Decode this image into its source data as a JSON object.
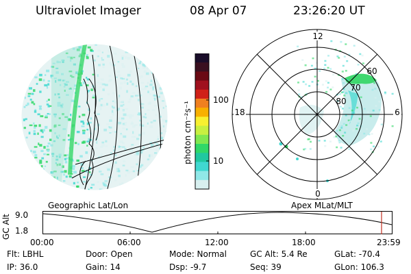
{
  "header": {
    "instrument": "Ultraviolet Imager",
    "date": "08 Apr 07",
    "time": "23:26:20 UT"
  },
  "colorbar": {
    "label": "photon cm⁻²s⁻¹",
    "ticks": [
      "100",
      "10"
    ],
    "colors": [
      "#1a0d2a",
      "#3a1020",
      "#6a0a14",
      "#a0101e",
      "#d02018",
      "#f08020",
      "#f8b000",
      "#f8f030",
      "#c8f040",
      "#80e850",
      "#30d868",
      "#20c8a0",
      "#40d8d0",
      "#90e8e8",
      "#d8f0f0"
    ]
  },
  "polar": {
    "labels": [
      "12",
      "18",
      "6",
      "0",
      "60",
      "70",
      "80"
    ]
  },
  "footer": {
    "left_title": "Geographic Lat/Lon",
    "right_title": "Apex MLat/MLT",
    "axis_label": "GC Alt",
    "y_ticks": [
      "9.0",
      "1.8"
    ],
    "x_ticks": [
      "00:00",
      "06:00",
      "12:00",
      "18:00",
      "23:59"
    ]
  },
  "info": {
    "row1": [
      "Flt: LBHL",
      "Door: Open",
      "Mode: Normal",
      "GC Alt: 5.4 Re",
      "GLat: -70.4"
    ],
    "row2": [
      "IP: 36.0",
      "Gain: 14",
      "Dsp: -9.7",
      "Seq: 39",
      "GLon: 106.3"
    ]
  },
  "colors": {
    "aurora": "#30d868",
    "cyan": "#40d8d0",
    "marker": "#c03020"
  }
}
